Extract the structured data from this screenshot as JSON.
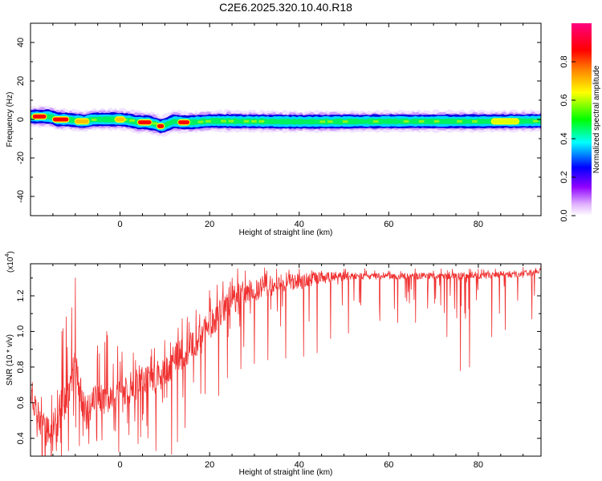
{
  "title": "C2E6.2025.320.10.40.R18",
  "chart_data": [
    {
      "type": "heatmap",
      "xlabel": "Height of straight line (km)",
      "ylabel": "Frequency (Hz)",
      "xlim": [
        -20,
        94
      ],
      "ylim": [
        -50,
        50
      ],
      "xticks": [
        0,
        20,
        40,
        60,
        80
      ],
      "yticks": [
        -40,
        -20,
        0,
        20,
        40
      ],
      "colorbar": {
        "label": "Normalized spectral amplitude",
        "range": [
          0.0,
          1.0
        ],
        "ticks": [
          0.0,
          0.2,
          0.4,
          0.6,
          0.8
        ],
        "tick_labels": [
          "0.0",
          "0.2",
          "0.4",
          "0.6",
          "0.8"
        ]
      },
      "band_center": [
        [
          -20,
          1.5
        ],
        [
          -18,
          1.5
        ],
        [
          -16,
          1.5
        ],
        [
          -15,
          1.0
        ],
        [
          -14,
          0.0
        ],
        [
          -12,
          0.0
        ],
        [
          -10,
          -0.5
        ],
        [
          -8,
          -1.0
        ],
        [
          -6,
          0.0
        ],
        [
          -2,
          0.0
        ],
        [
          0,
          0.0
        ],
        [
          2,
          -0.5
        ],
        [
          4,
          -1.5
        ],
        [
          6,
          -1.5
        ],
        [
          8,
          -2.5
        ],
        [
          9,
          -3.5
        ],
        [
          10,
          -3.0
        ],
        [
          12,
          -1.0
        ],
        [
          14,
          -1.5
        ],
        [
          16,
          -1.5
        ],
        [
          20,
          -0.8
        ],
        [
          30,
          -1.0
        ],
        [
          40,
          -1.2
        ],
        [
          60,
          -1.0
        ],
        [
          80,
          -1.0
        ],
        [
          94,
          -0.8
        ]
      ],
      "hot_spots": [
        {
          "x": [
            -19.5,
            -16.5
          ],
          "y": 1.5,
          "level": 1.0
        },
        {
          "x": [
            -15,
            -11.5
          ],
          "y": 0.0,
          "level": 1.0
        },
        {
          "x": [
            -10,
            -7
          ],
          "y": -1.0,
          "level": 0.7
        },
        {
          "x": [
            4,
            7
          ],
          "y": -1.5,
          "level": 1.0
        },
        {
          "x": [
            8.3,
            9.8
          ],
          "y": -3.5,
          "level": 1.0
        },
        {
          "x": [
            13,
            15.5
          ],
          "y": -1.5,
          "level": 1.0
        },
        {
          "x": [
            -1,
            1
          ],
          "y": 0.0,
          "level": 0.65
        },
        {
          "x": [
            83,
            89
          ],
          "y": -1.0,
          "level": 0.5
        }
      ]
    },
    {
      "type": "line",
      "xlabel": "Height of straight line (km)",
      "ylabel": "SNR (10 * v/v)",
      "yexponent_label": "(x10",
      "yexponent_power": "4",
      "yexponent_close": ")",
      "xlim": [
        -20,
        94
      ],
      "ylim": [
        0.3,
        1.38
      ],
      "xticks": [
        0,
        20,
        40,
        60,
        80
      ],
      "yticks": [
        0.4,
        0.6,
        0.8,
        1.0,
        1.2
      ],
      "ytick_labels": [
        "0.4",
        "0.6",
        "0.8",
        "1.0",
        "1.2"
      ],
      "series": [
        {
          "color": "#f03030",
          "envelope": [
            [
              -20,
              0.6
            ],
            [
              -18,
              0.5
            ],
            [
              -16,
              0.42
            ],
            [
              -14,
              0.5
            ],
            [
              -12,
              0.62
            ],
            [
              -10,
              0.82
            ],
            [
              -8,
              0.55
            ],
            [
              -5,
              0.62
            ],
            [
              -2,
              0.6
            ],
            [
              0,
              0.66
            ],
            [
              2,
              0.68
            ],
            [
              5,
              0.72
            ],
            [
              8,
              0.74
            ],
            [
              10,
              0.78
            ],
            [
              12,
              0.84
            ],
            [
              15,
              0.9
            ],
            [
              18,
              0.96
            ],
            [
              20,
              1.04
            ],
            [
              22,
              1.1
            ],
            [
              25,
              1.17
            ],
            [
              28,
              1.22
            ],
            [
              32,
              1.25
            ],
            [
              36,
              1.27
            ],
            [
              40,
              1.28
            ],
            [
              45,
              1.3
            ],
            [
              50,
              1.31
            ],
            [
              55,
              1.31
            ],
            [
              60,
              1.31
            ],
            [
              65,
              1.31
            ],
            [
              70,
              1.31
            ],
            [
              75,
              1.31
            ],
            [
              80,
              1.31
            ],
            [
              85,
              1.32
            ],
            [
              90,
              1.32
            ],
            [
              94,
              1.34
            ]
          ],
          "peaks": [
            [
              -20,
              0.65
            ],
            [
              -14,
              0.67
            ],
            [
              -13,
              1.0
            ],
            [
              -10,
              1.3
            ],
            [
              -5,
              0.92
            ],
            [
              -3,
              1.0
            ],
            [
              0,
              0.83
            ],
            [
              3,
              0.88
            ],
            [
              7,
              0.9
            ],
            [
              10,
              0.95
            ],
            [
              13,
              1.02
            ],
            [
              15,
              1.08
            ],
            [
              17,
              1.12
            ],
            [
              20,
              1.23
            ],
            [
              23,
              1.28
            ],
            [
              25,
              1.3
            ],
            [
              28,
              1.34
            ],
            [
              35,
              1.35
            ],
            [
              40,
              1.35
            ],
            [
              45,
              1.34
            ],
            [
              50,
              1.35
            ],
            [
              55,
              1.34
            ],
            [
              60,
              1.34
            ],
            [
              70,
              1.34
            ],
            [
              80,
              1.35
            ],
            [
              90,
              1.36
            ],
            [
              94,
              1.38
            ]
          ],
          "dips": [
            [
              -18.5,
              0.41
            ],
            [
              -16.5,
              0.36
            ],
            [
              -15,
              0.33
            ],
            [
              -11.5,
              0.33
            ],
            [
              -7,
              0.37
            ],
            [
              -4,
              0.39
            ],
            [
              -1,
              0.44
            ],
            [
              2,
              0.42
            ],
            [
              4,
              0.37
            ],
            [
              6,
              0.47
            ],
            [
              8,
              0.33
            ],
            [
              11.5,
              0.31
            ],
            [
              12.8,
              0.38
            ],
            [
              14.5,
              0.46
            ],
            [
              17,
              0.56
            ],
            [
              19,
              0.65
            ],
            [
              22,
              0.64
            ],
            [
              24,
              0.74
            ],
            [
              27,
              0.79
            ],
            [
              30,
              0.82
            ],
            [
              33,
              0.84
            ],
            [
              37,
              0.85
            ],
            [
              41,
              0.86
            ],
            [
              44,
              0.88
            ],
            [
              47,
              0.96
            ],
            [
              51,
              0.99
            ],
            [
              55,
              1.03
            ],
            [
              58,
              1.06
            ],
            [
              62,
              1.05
            ],
            [
              66,
              1.05
            ],
            [
              70,
              1.0
            ],
            [
              73,
              0.97
            ],
            [
              76,
              0.78
            ],
            [
              78,
              0.8
            ],
            [
              80,
              0.92
            ],
            [
              83,
              0.97
            ],
            [
              86,
              1.01
            ],
            [
              90,
              1.0
            ],
            [
              92,
              1.07
            ]
          ]
        }
      ]
    }
  ]
}
